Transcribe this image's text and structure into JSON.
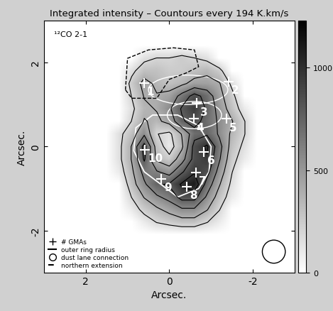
{
  "chart_data": {
    "type": "heatmap",
    "title": "Integrated intensity – Countours every 194 K.km/s",
    "annotation": "¹²CO 2-1",
    "x_label": "Arcsec.",
    "y_label": "Arcsec.",
    "xlim": [
      3,
      -3
    ],
    "ylim": [
      -3,
      3
    ],
    "xticks": [
      2,
      0,
      -2
    ],
    "yticks": [
      -2,
      0,
      2
    ],
    "x": [
      1.5,
      1.2,
      0.9,
      0.6,
      0.3,
      0,
      -0.3,
      -0.6,
      -0.9,
      -1.2,
      -1.5,
      -1.8,
      -2.1
    ],
    "y": [
      2.4,
      2.1,
      1.8,
      1.5,
      1.2,
      0.9,
      0.6,
      0.3,
      0,
      -0.3,
      -0.6,
      -0.9,
      -1.2,
      -1.5,
      -1.8,
      -2.1,
      -2.4
    ],
    "cells": [
      [
        0,
        0,
        0,
        0,
        0,
        0,
        0,
        0,
        0,
        0,
        0,
        0,
        0
      ],
      [
        0,
        0,
        0,
        150,
        200,
        200,
        250,
        200,
        150,
        0,
        0,
        0,
        0
      ],
      [
        0,
        0,
        150,
        300,
        300,
        250,
        250,
        300,
        350,
        250,
        0,
        0,
        0
      ],
      [
        0,
        0,
        250,
        450,
        350,
        300,
        350,
        450,
        450,
        400,
        150,
        0,
        0
      ],
      [
        0,
        0,
        200,
        400,
        400,
        450,
        650,
        850,
        700,
        450,
        250,
        0,
        0
      ],
      [
        0,
        0,
        150,
        350,
        400,
        550,
        800,
        950,
        750,
        500,
        300,
        100,
        0
      ],
      [
        0,
        0,
        200,
        400,
        350,
        450,
        750,
        850,
        700,
        550,
        400,
        200,
        0
      ],
      [
        0,
        150,
        300,
        550,
        200,
        150,
        400,
        700,
        750,
        550,
        350,
        200,
        0
      ],
      [
        0,
        150,
        400,
        850,
        300,
        100,
        350,
        850,
        1000,
        650,
        300,
        150,
        0
      ],
      [
        0,
        150,
        400,
        800,
        350,
        250,
        500,
        850,
        950,
        600,
        250,
        100,
        0
      ],
      [
        0,
        100,
        350,
        650,
        600,
        500,
        750,
        950,
        850,
        500,
        200,
        0,
        0
      ],
      [
        0,
        0,
        300,
        550,
        750,
        800,
        1000,
        1100,
        700,
        400,
        150,
        0,
        0
      ],
      [
        0,
        0,
        200,
        400,
        550,
        650,
        850,
        850,
        550,
        300,
        100,
        0,
        0
      ],
      [
        0,
        0,
        100,
        250,
        350,
        450,
        550,
        550,
        400,
        200,
        0,
        0,
        0
      ],
      [
        0,
        0,
        0,
        100,
        200,
        250,
        300,
        300,
        200,
        100,
        0,
        0,
        0
      ],
      [
        0,
        0,
        0,
        0,
        0,
        0,
        0,
        0,
        0,
        0,
        0,
        0,
        0
      ],
      [
        0,
        0,
        0,
        0,
        0,
        0,
        0,
        0,
        0,
        0,
        0,
        0,
        0
      ]
    ],
    "colorbar_range": [
      0,
      1230
    ],
    "colorbar_ticks": [
      0,
      500,
      1000
    ],
    "contour_levels": [
      194,
      388,
      582,
      776,
      970
    ],
    "gmas": {
      "labels": [
        "1",
        "2",
        "3",
        "4",
        "5",
        "6",
        "7",
        "8",
        "9",
        "10"
      ],
      "x": [
        0.61,
        -1.42,
        -0.66,
        -0.58,
        -1.36,
        -0.83,
        -0.64,
        -0.42,
        0.2,
        0.58
      ],
      "y": [
        1.51,
        1.55,
        1.03,
        0.66,
        0.66,
        -0.13,
        -0.62,
        -0.96,
        -0.77,
        -0.08
      ],
      "marker": "+"
    },
    "outer_ring": {
      "x": [
        0.8,
        0.4,
        -0.2,
        -0.7,
        -1.0,
        -0.95,
        -0.7,
        -0.2,
        0.2,
        0.6,
        0.85
      ],
      "y": [
        0.45,
        0.75,
        0.75,
        0.5,
        0.0,
        -0.6,
        -1.0,
        -1.2,
        -0.9,
        -0.6,
        -0.1
      ]
    },
    "dust_lane_connection": [
      {
        "center": [
          -0.6,
          0.75
        ],
        "width": 1.3,
        "height": 0.65
      },
      {
        "center": [
          -0.45,
          1.35
        ],
        "width": 1.9,
        "height": 0.7
      }
    ],
    "northern_extension": {
      "x": [
        1.05,
        1.0,
        0.5,
        -0.1,
        -0.6,
        -0.7,
        -0.4,
        0.0,
        0.3,
        0.9
      ],
      "y": [
        1.35,
        2.1,
        2.3,
        2.35,
        2.3,
        1.9,
        1.75,
        1.6,
        1.15,
        1.15
      ]
    },
    "beam": {
      "center": [
        -2.5,
        -2.5
      ],
      "diameter": 0.55
    },
    "legend": "lower left",
    "legend_entries": [
      "# GMAs",
      "outer ring radius",
      "dust lane connection",
      "northern extension"
    ]
  }
}
